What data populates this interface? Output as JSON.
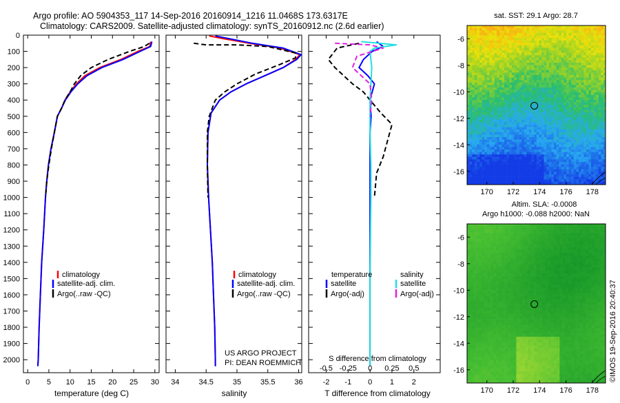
{
  "header": {
    "line1": "Argo profile: AO 5904353_117 14-Sep-2016 20160914_1216 11.0468S 173.6317E",
    "line2": "Climatology: CARS2009. Satellite-adjusted climatology: synTS_20160912.nc (2.6d earlier)"
  },
  "credit": "©IMOS 19-Sep-2016 20:40:37",
  "project": {
    "line1": "US ARGO PROJECT",
    "line2": "PI: DEAN ROEMMICH"
  },
  "colors": {
    "climatology": "#ff0000",
    "satellite": "#0000ff",
    "argo": "#000000",
    "cyan": "#22e0e0",
    "magenta": "#e020e0"
  },
  "depth_ticks": [
    "0",
    "100",
    "200",
    "300",
    "400",
    "500",
    "600",
    "700",
    "800",
    "900",
    "1000",
    "1100",
    "1200",
    "1300",
    "1400",
    "1500",
    "1600",
    "1700",
    "1800",
    "1900",
    "2000"
  ],
  "legend_profile": {
    "climatology": "climatology",
    "satellite": "satellite-adj. clim.",
    "argo": "Argo(..raw -QC)"
  },
  "legend_diff": {
    "temperature_title": "temperature",
    "salinity_title": "salinity",
    "t_satellite": "satellite",
    "t_argo": "Argo(-adj)",
    "s_satellite": "satellite",
    "s_argo": "Argo(-adj)"
  },
  "chart_data": [
    {
      "type": "line",
      "xlabel": "temperature (deg C)",
      "x_ticks": [
        "0",
        "5",
        "10",
        "15",
        "20",
        "25",
        "30"
      ],
      "xlim": [
        -1,
        31
      ],
      "ylim": [
        2080,
        0
      ],
      "series": [
        {
          "name": "climatology",
          "points": [
            [
              29,
              40
            ],
            [
              28.8,
              70
            ],
            [
              26,
              100
            ],
            [
              22,
              150
            ],
            [
              17,
              200
            ],
            [
              13.5,
              250
            ],
            [
              11.5,
              300
            ],
            [
              10,
              350
            ],
            [
              8.8,
              400
            ],
            [
              8,
              450
            ],
            [
              7,
              500
            ],
            [
              6.3,
              600
            ],
            [
              5.5,
              700
            ],
            [
              4.9,
              800
            ],
            [
              4.5,
              900
            ],
            [
              4.2,
              1000
            ],
            [
              3.8,
              1200
            ],
            [
              3.3,
              1400
            ],
            [
              3,
              1600
            ],
            [
              2.7,
              1800
            ],
            [
              2.5,
              2000
            ],
            [
              2.4,
              2040
            ]
          ]
        },
        {
          "name": "satellite-adj. clim.",
          "points": [
            [
              29.3,
              40
            ],
            [
              29,
              70
            ],
            [
              26.5,
              100
            ],
            [
              22.5,
              150
            ],
            [
              17.5,
              200
            ],
            [
              14,
              250
            ],
            [
              11.8,
              300
            ],
            [
              10.2,
              350
            ],
            [
              8.9,
              400
            ],
            [
              8,
              450
            ],
            [
              7,
              500
            ],
            [
              6.3,
              600
            ],
            [
              5.5,
              700
            ],
            [
              4.9,
              800
            ],
            [
              4.5,
              900
            ],
            [
              4.2,
              1000
            ],
            [
              3.8,
              1200
            ],
            [
              3.3,
              1400
            ],
            [
              3,
              1600
            ],
            [
              2.7,
              1800
            ],
            [
              2.5,
              2000
            ],
            [
              2.4,
              2040
            ]
          ]
        },
        {
          "name": "Argo(..raw -QC)",
          "points": [
            [
              28.7,
              50
            ],
            [
              27.5,
              70
            ],
            [
              24,
              100
            ],
            [
              19,
              150
            ],
            [
              15,
              200
            ],
            [
              12.5,
              250
            ],
            [
              11,
              300
            ],
            [
              10,
              350
            ],
            [
              8.8,
              400
            ],
            [
              8,
              450
            ],
            [
              7,
              500
            ],
            [
              6.3,
              600
            ],
            [
              5.6,
              700
            ],
            [
              5,
              800
            ],
            [
              4.5,
              900
            ],
            [
              4.2,
              1000
            ]
          ]
        }
      ]
    },
    {
      "type": "line",
      "xlabel": "salinity",
      "x_ticks": [
        "34",
        "34.5",
        "35",
        "35.5",
        "36"
      ],
      "xlim": [
        33.85,
        36.05
      ],
      "ylim": [
        2080,
        0
      ],
      "series": [
        {
          "name": "climatology",
          "points": [
            [
              34.55,
              5
            ],
            [
              34.75,
              20
            ],
            [
              35.2,
              50
            ],
            [
              35.7,
              80
            ],
            [
              36.02,
              120
            ],
            [
              35.95,
              150
            ],
            [
              35.75,
              200
            ],
            [
              35.45,
              250
            ],
            [
              35.15,
              300
            ],
            [
              34.9,
              350
            ],
            [
              34.72,
              400
            ],
            [
              34.58,
              480
            ],
            [
              34.53,
              600
            ],
            [
              34.52,
              800
            ],
            [
              34.54,
              1000
            ],
            [
              34.57,
              1200
            ],
            [
              34.6,
              1400
            ],
            [
              34.62,
              1600
            ],
            [
              34.64,
              1800
            ],
            [
              34.65,
              2000
            ],
            [
              34.65,
              2040
            ]
          ]
        },
        {
          "name": "satellite-adj. clim.",
          "points": [
            [
              34.65,
              5
            ],
            [
              34.85,
              20
            ],
            [
              35.25,
              50
            ],
            [
              35.75,
              80
            ],
            [
              36.04,
              120
            ],
            [
              35.97,
              150
            ],
            [
              35.75,
              200
            ],
            [
              35.45,
              250
            ],
            [
              35.15,
              300
            ],
            [
              34.9,
              350
            ],
            [
              34.72,
              400
            ],
            [
              34.58,
              480
            ],
            [
              34.53,
              600
            ],
            [
              34.52,
              800
            ],
            [
              34.54,
              1000
            ],
            [
              34.57,
              1200
            ],
            [
              34.6,
              1400
            ],
            [
              34.62,
              1600
            ],
            [
              34.64,
              1800
            ],
            [
              34.65,
              2000
            ],
            [
              34.65,
              2040
            ]
          ]
        },
        {
          "name": "Argo(..raw -QC)",
          "points": [
            [
              34.3,
              50
            ],
            [
              34.5,
              60
            ],
            [
              35,
              60
            ],
            [
              35.5,
              70
            ],
            [
              35.95,
              110
            ],
            [
              35.95,
              140
            ],
            [
              35.7,
              180
            ],
            [
              35.3,
              240
            ],
            [
              35.0,
              300
            ],
            [
              34.8,
              350
            ],
            [
              34.65,
              400
            ],
            [
              34.55,
              500
            ],
            [
              34.52,
              600
            ],
            [
              34.52,
              800
            ],
            [
              34.53,
              1000
            ]
          ]
        }
      ]
    },
    {
      "type": "line",
      "xlabel": "T difference from climatology",
      "x_ticks": [
        "-2",
        "-1",
        "0",
        "1",
        "2"
      ],
      "xlim": [
        -2.8,
        3.2
      ],
      "ylim": [
        2080,
        0
      ],
      "x2label": "S difference from climatology",
      "x2_ticks": [
        "-0.5",
        "-0.25",
        "0",
        "0.25",
        "0.5"
      ],
      "x2lim": [
        -0.7,
        0.8
      ],
      "series": [
        {
          "name": "temperature satellite",
          "points": [
            [
              0.3,
              40
            ],
            [
              0.6,
              70
            ],
            [
              0.1,
              100
            ],
            [
              -0.3,
              150
            ],
            [
              -0.5,
              200
            ],
            [
              -0.1,
              250
            ],
            [
              0.2,
              300
            ],
            [
              0.1,
              350
            ],
            [
              0,
              400
            ],
            [
              0.05,
              500
            ],
            [
              0,
              600
            ],
            [
              0,
              800
            ],
            [
              0,
              1000
            ],
            [
              0,
              1500
            ],
            [
              0,
              2040
            ]
          ]
        },
        {
          "name": "temperature Argo(-adj)",
          "points": [
            [
              -0.5,
              50
            ],
            [
              -1.5,
              80
            ],
            [
              -1.9,
              150
            ],
            [
              -1.6,
              200
            ],
            [
              -1.2,
              250
            ],
            [
              -0.8,
              300
            ],
            [
              -0.3,
              350
            ],
            [
              0,
              400
            ],
            [
              0.5,
              480
            ],
            [
              1.0,
              550
            ],
            [
              0.8,
              650
            ],
            [
              0.6,
              750
            ],
            [
              0.3,
              850
            ],
            [
              0.2,
              1000
            ]
          ]
        },
        {
          "name": "salinity satellite",
          "points": [
            [
              -0.1,
              40
            ],
            [
              0.3,
              60
            ],
            [
              0.05,
              80
            ],
            [
              0,
              100
            ],
            [
              0.02,
              200
            ],
            [
              0.01,
              300
            ],
            [
              0,
              400
            ],
            [
              0,
              600
            ],
            [
              0.01,
              800
            ],
            [
              0.01,
              1000
            ],
            [
              0,
              1500
            ],
            [
              0,
              2040
            ]
          ]
        },
        {
          "name": "salinity Argo(-adj)",
          "points": [
            [
              -0.4,
              50
            ],
            [
              0,
              60
            ],
            [
              0.15,
              80
            ],
            [
              -0.15,
              130
            ],
            [
              -0.2,
              200
            ],
            [
              0,
              300
            ],
            [
              0.02,
              400
            ],
            [
              0,
              500
            ]
          ]
        }
      ]
    },
    {
      "type": "heatmap",
      "title": "sat. SST: 29.1  Argo: 28.7",
      "x_ticks": [
        "170",
        "172",
        "174",
        "176",
        "178"
      ],
      "y_ticks": [
        "-6",
        "-8",
        "-10",
        "-12",
        "-14",
        "-16"
      ],
      "xlim": [
        168.5,
        179
      ],
      "ylim": [
        -17,
        -5
      ],
      "marker": [
        173.6,
        -11.05
      ]
    },
    {
      "type": "heatmap",
      "title": "Altim. SLA: -0.0008",
      "subtitle": "Argo h1000: -0.088 h2000: NaN",
      "x_ticks": [
        "170",
        "172",
        "174",
        "176",
        "178"
      ],
      "y_ticks": [
        "-6",
        "-8",
        "-10",
        "-12",
        "-14",
        "-16"
      ],
      "xlim": [
        168.5,
        179
      ],
      "ylim": [
        -17,
        -5
      ],
      "marker": [
        173.6,
        -11.05
      ]
    }
  ]
}
